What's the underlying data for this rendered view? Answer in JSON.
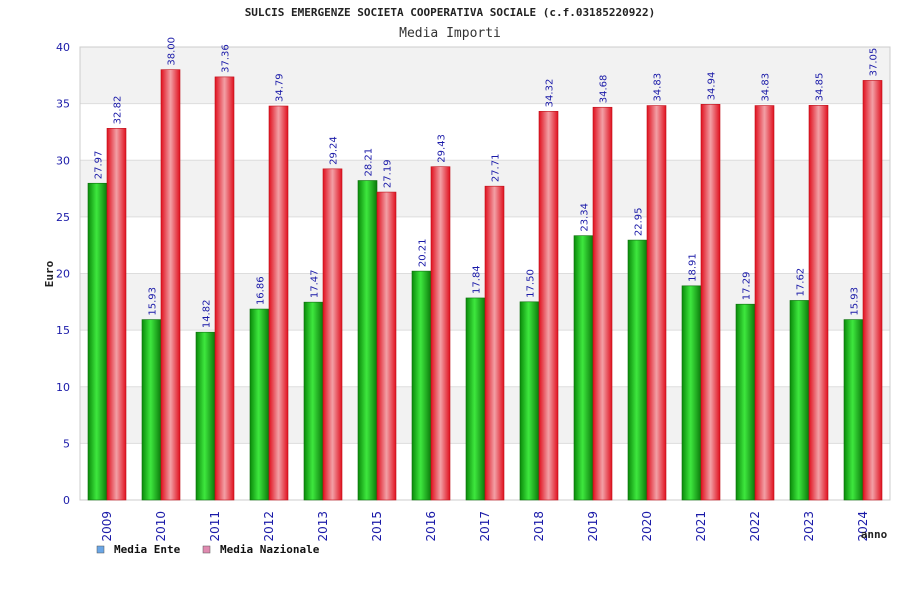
{
  "chart_data": {
    "type": "bar",
    "title": "SULCIS EMERGENZE SOCIETA COOPERATIVA SOCIALE (c.f.03185220922)",
    "subtitle": "Media Importi",
    "ylabel": "Euro",
    "xlabel": "anno",
    "ylim": [
      0,
      40
    ],
    "yticks": [
      "0",
      "5",
      "10",
      "15",
      "20",
      "25",
      "30",
      "35",
      "40"
    ],
    "grid": "horizontal alternating bands",
    "legend_position": "bottom-left",
    "categories": [
      "2009",
      "2010",
      "2011",
      "2012",
      "2013",
      "2015",
      "2016",
      "2017",
      "2018",
      "2019",
      "2020",
      "2021",
      "2022",
      "2023",
      "2024"
    ],
    "series": [
      {
        "name": "Media Ente",
        "bar_color": "#22b022",
        "legend_color": "#6aa6e6",
        "values": [
          27.97,
          15.93,
          14.82,
          16.86,
          17.47,
          28.21,
          20.21,
          17.84,
          17.5,
          23.34,
          22.95,
          18.91,
          17.29,
          17.62,
          15.93
        ],
        "labels": [
          "27.97",
          "15.93",
          "14.82",
          "16.86",
          "17.47",
          "28.21",
          "20.21",
          "17.84",
          "17.50",
          "23.34",
          "22.95",
          "18.91",
          "17.29",
          "17.62",
          "15.93"
        ]
      },
      {
        "name": "Media Nazionale",
        "bar_color": "#e8303a",
        "legend_color": "#e08ab0",
        "values": [
          32.82,
          38.0,
          37.36,
          34.79,
          29.24,
          27.19,
          29.43,
          27.71,
          34.32,
          34.68,
          34.83,
          34.94,
          34.83,
          34.85,
          37.05
        ],
        "labels": [
          "32.82",
          "38.00",
          "37.36",
          "34.79",
          "29.24",
          "27.19",
          "29.43",
          "27.71",
          "34.32",
          "34.68",
          "34.83",
          "34.94",
          "34.83",
          "34.85",
          "37.05"
        ]
      }
    ]
  }
}
